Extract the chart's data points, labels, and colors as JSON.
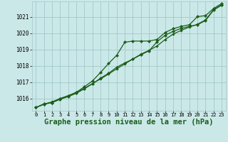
{
  "background_color": "#cbe8e8",
  "grid_color": "#a0c8c8",
  "line_color": "#1a5e1a",
  "marker_color": "#1a5e1a",
  "xlabel": "Graphe pression niveau de la mer (hPa)",
  "xlabel_fontsize": 7.5,
  "xlim": [
    -0.5,
    23.5
  ],
  "ylim": [
    1015.25,
    1021.95
  ],
  "yticks": [
    1016,
    1017,
    1018,
    1019,
    1020,
    1021
  ],
  "xticks": [
    0,
    1,
    2,
    3,
    4,
    5,
    6,
    7,
    8,
    9,
    10,
    11,
    12,
    13,
    14,
    15,
    16,
    17,
    18,
    19,
    20,
    21,
    22,
    23
  ],
  "line1_smooth": [
    1015.45,
    1015.65,
    1015.8,
    1016.0,
    1016.15,
    1016.38,
    1016.62,
    1016.92,
    1017.2,
    1017.5,
    1017.82,
    1018.12,
    1018.42,
    1018.72,
    1018.95,
    1019.22,
    1019.62,
    1019.95,
    1020.18,
    1020.38,
    1020.55,
    1020.82,
    1021.45,
    1021.75
  ],
  "line2_upper": [
    1015.45,
    1015.68,
    1015.75,
    1016.0,
    1016.18,
    1016.38,
    1016.72,
    1017.08,
    1017.6,
    1018.15,
    1018.65,
    1019.45,
    1019.52,
    1019.52,
    1019.52,
    1019.62,
    1020.05,
    1020.28,
    1020.42,
    1020.52,
    1021.02,
    1021.08,
    1021.52,
    1021.82
  ],
  "line3_lower": [
    1015.45,
    1015.65,
    1015.75,
    1015.95,
    1016.12,
    1016.32,
    1016.6,
    1016.9,
    1017.25,
    1017.55,
    1017.92,
    1018.18,
    1018.42,
    1018.68,
    1018.92,
    1019.48,
    1019.88,
    1020.12,
    1020.3,
    1020.42,
    1020.52,
    1020.78,
    1021.42,
    1021.72
  ]
}
